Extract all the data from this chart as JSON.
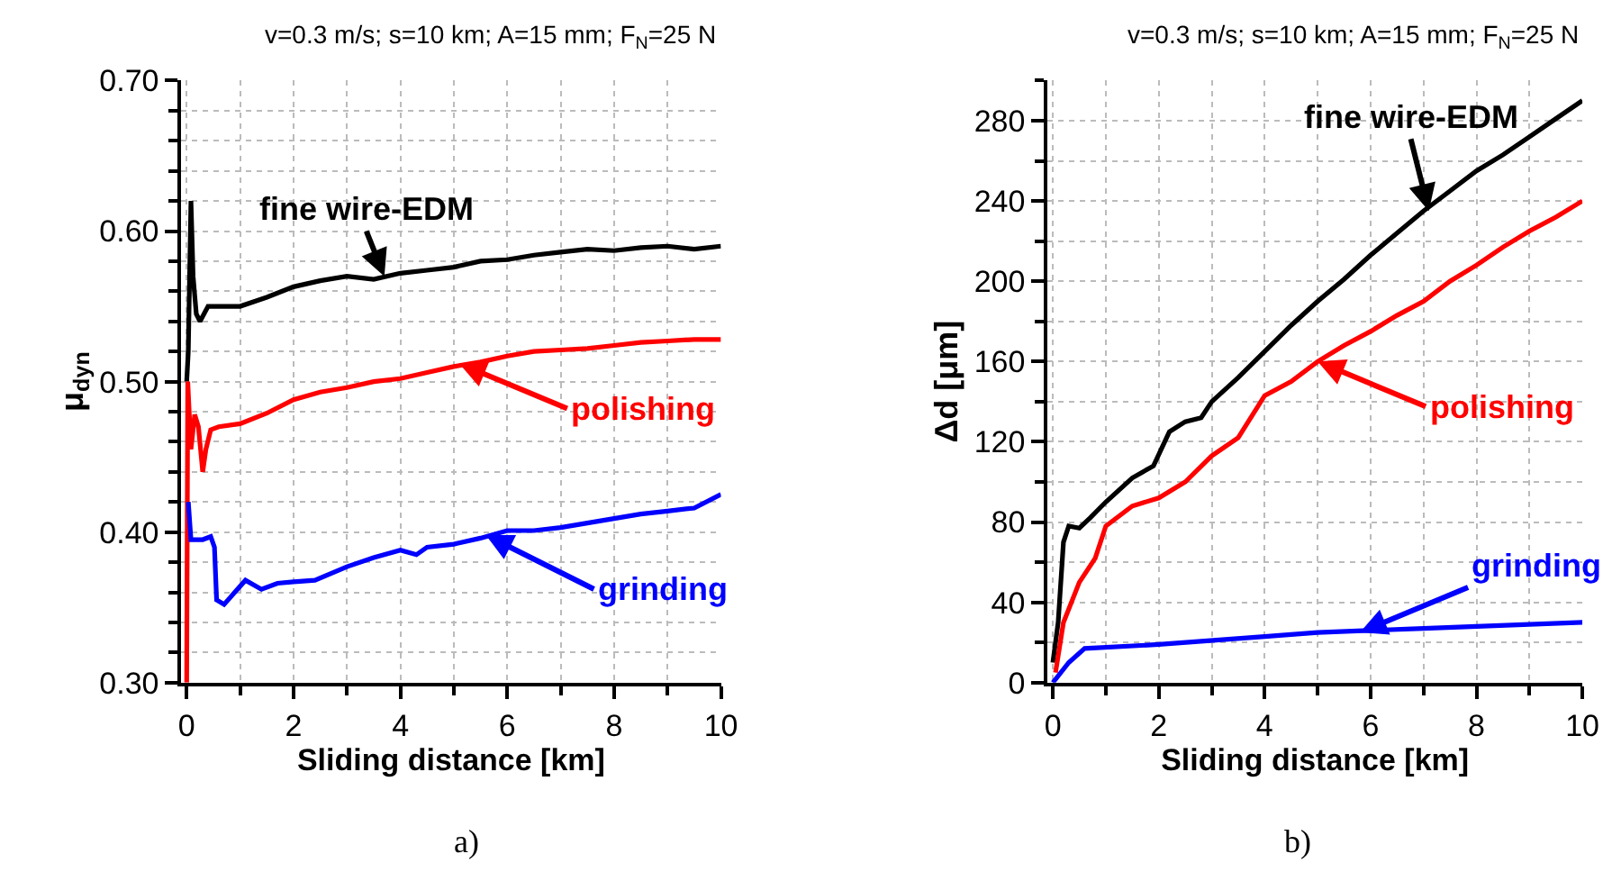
{
  "chart_data": [
    {
      "type": "line",
      "title": "v=0.3 m/s; s=10 km; A=15 mm; F$_{N}$=25 N",
      "xlabel": "Sliding distance [km]",
      "ylabel": "μ$_{dyn}$",
      "xlim": [
        -0.1,
        10
      ],
      "xticks": [
        0,
        2,
        4,
        6,
        8,
        10
      ],
      "ylim": [
        0.3,
        0.7
      ],
      "yticks": [
        {
          "value": 0.3,
          "label": "0.30"
        },
        {
          "value": 0.4,
          "label": "0.40"
        },
        {
          "value": 0.5,
          "label": "0.50"
        },
        {
          "value": 0.6,
          "label": "0.60"
        },
        {
          "value": 0.7,
          "label": "0.70"
        }
      ],
      "grid": true,
      "line_style": "solid",
      "marker": "none",
      "series": [
        {
          "color": "#000000",
          "x": [
            0.0,
            0.03,
            0.08,
            0.12,
            0.18,
            0.25,
            0.4,
            0.6,
            1.0,
            1.5,
            2.0,
            2.5,
            3.0,
            3.5,
            4.0,
            4.5,
            5.0,
            5.5,
            6.0,
            6.5,
            7.0,
            7.5,
            8.0,
            8.5,
            9.0,
            9.5,
            10.0
          ],
          "values": [
            0.5,
            0.52,
            0.62,
            0.57,
            0.545,
            0.54,
            0.55,
            0.55,
            0.55,
            0.556,
            0.563,
            0.567,
            0.57,
            0.568,
            0.572,
            0.574,
            0.576,
            0.58,
            0.581,
            0.584,
            0.586,
            0.588,
            0.587,
            0.589,
            0.59,
            0.588,
            0.59
          ]
        },
        {
          "color": "#ff0000",
          "x": [
            0.0,
            0.02,
            0.08,
            0.15,
            0.22,
            0.3,
            0.36,
            0.45,
            0.6,
            1.0,
            1.5,
            2.0,
            2.5,
            3.0,
            3.5,
            4.0,
            4.5,
            5.0,
            5.5,
            6.0,
            6.5,
            7.0,
            7.5,
            8.0,
            8.5,
            9.0,
            9.5,
            10.0
          ],
          "values": [
            0.3,
            0.5,
            0.455,
            0.478,
            0.47,
            0.44,
            0.455,
            0.468,
            0.47,
            0.472,
            0.479,
            0.488,
            0.493,
            0.496,
            0.5,
            0.502,
            0.506,
            0.51,
            0.513,
            0.517,
            0.52,
            0.521,
            0.522,
            0.524,
            0.526,
            0.527,
            0.528,
            0.528
          ]
        },
        {
          "color": "#0000ff",
          "x": [
            0.03,
            0.08,
            0.3,
            0.45,
            0.52,
            0.56,
            0.7,
            0.9,
            1.1,
            1.4,
            1.7,
            2.0,
            2.4,
            3.0,
            3.5,
            4.0,
            4.3,
            4.5,
            5.0,
            5.5,
            6.0,
            6.5,
            7.0,
            7.5,
            8.0,
            8.5,
            9.0,
            9.5,
            10.0
          ],
          "values": [
            0.42,
            0.395,
            0.395,
            0.397,
            0.39,
            0.355,
            0.352,
            0.36,
            0.368,
            0.362,
            0.366,
            0.367,
            0.368,
            0.377,
            0.383,
            0.388,
            0.385,
            0.39,
            0.392,
            0.396,
            0.401,
            0.401,
            0.403,
            0.406,
            0.409,
            0.412,
            0.414,
            0.416,
            0.425
          ]
        }
      ],
      "annotations": [
        {
          "text": "fine wire-EDM",
          "x": 3.7,
          "y": 0.57
        },
        {
          "text": "polishing",
          "x": 5.1,
          "y": 0.512
        },
        {
          "text": "grinding",
          "x": 5.6,
          "y": 0.398
        },
        "a)"
      ]
    },
    {
      "type": "line",
      "title": "v=0.3 m/s; s=10 km; A=15 mm; F$_{N}$=25 N",
      "xlabel": "Sliding distance [km]",
      "ylabel": "Δd [μm]",
      "xlim": [
        -0.1,
        10
      ],
      "xticks": [
        0,
        2,
        4,
        6,
        8,
        10
      ],
      "ylim": [
        0,
        300
      ],
      "yticks": [
        0,
        40,
        80,
        120,
        160,
        200,
        240,
        280
      ],
      "grid": true,
      "line_style": "solid",
      "marker": "none",
      "series": [
        {
          "color": "#000000",
          "x": [
            0.0,
            0.1,
            0.2,
            0.3,
            0.5,
            0.7,
            1.0,
            1.5,
            1.9,
            2.2,
            2.5,
            2.8,
            3.0,
            3.5,
            4.0,
            4.5,
            5.0,
            5.5,
            6.0,
            6.5,
            7.0,
            7.5,
            8.0,
            8.5,
            9.0,
            9.5,
            10.0
          ],
          "values": [
            10,
            30,
            70,
            78,
            77,
            82,
            90,
            102,
            108,
            125,
            130,
            132,
            140,
            152,
            165,
            178,
            190,
            201,
            213,
            224,
            235,
            245,
            255,
            263,
            272,
            281,
            290
          ]
        },
        {
          "color": "#ff0000",
          "x": [
            0.05,
            0.2,
            0.5,
            0.8,
            1.0,
            1.5,
            2.0,
            2.5,
            3.0,
            3.5,
            4.0,
            4.5,
            5.0,
            5.5,
            6.0,
            6.5,
            7.0,
            7.5,
            8.0,
            8.5,
            9.0,
            9.5,
            10.0
          ],
          "values": [
            5,
            30,
            50,
            62,
            78,
            88,
            92,
            100,
            113,
            122,
            143,
            150,
            160,
            168,
            175,
            183,
            190,
            200,
            208,
            217,
            225,
            232,
            240
          ]
        },
        {
          "color": "#0000ff",
          "x": [
            0.0,
            0.3,
            0.6,
            2.0,
            4.0,
            5.0,
            7.0,
            8.0,
            10.0
          ],
          "values": [
            0,
            10,
            17,
            19,
            23,
            25,
            27,
            28,
            30
          ]
        }
      ],
      "annotations": [
        {
          "text": "fine wire-EDM",
          "x": 7.1,
          "y": 235
        },
        {
          "text": "polishing",
          "x": 5.0,
          "y": 160
        },
        {
          "text": "grinding",
          "x": 5.8,
          "y": 25
        },
        "b)"
      ]
    }
  ]
}
